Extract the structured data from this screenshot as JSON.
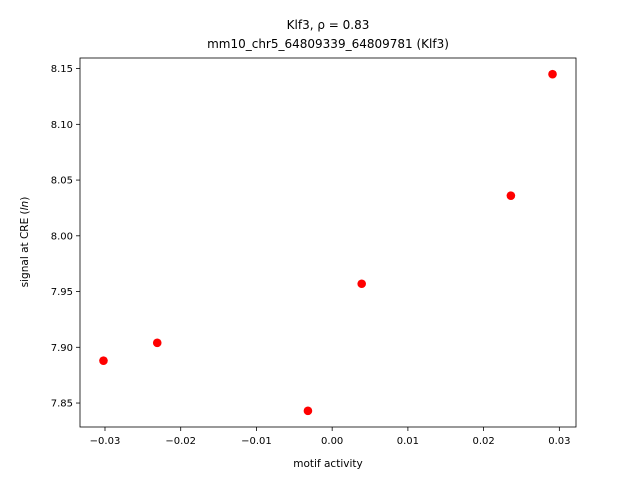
{
  "chart_data": {
    "type": "scatter",
    "title_line1": "Klf3, ρ = 0.83",
    "title_line2": "mm10_chr5_64809339_64809781 (Klf3)",
    "xlabel": "motif activity",
    "ylabel_prefix": "signal at CRE (",
    "ylabel_unit": "ln",
    "ylabel_suffix": ")",
    "xlim": [
      -0.0333,
      0.0322
    ],
    "ylim": [
      7.8285,
      8.1595
    ],
    "xticks": [
      -0.03,
      -0.02,
      -0.01,
      0.0,
      0.01,
      0.02,
      0.03
    ],
    "xtick_labels": [
      "−0.03",
      "−0.02",
      "−0.01",
      "0.00",
      "0.01",
      "0.02",
      "0.03"
    ],
    "yticks": [
      7.85,
      7.9,
      7.95,
      8.0,
      8.05,
      8.1,
      8.15
    ],
    "ytick_labels": [
      "7.85",
      "7.90",
      "7.95",
      "8.00",
      "8.05",
      "8.10",
      "8.15"
    ],
    "grid": false,
    "marker_color": "#ff0000",
    "points": [
      {
        "x": -0.0302,
        "y": 7.888
      },
      {
        "x": -0.0231,
        "y": 7.904
      },
      {
        "x": -0.0032,
        "y": 7.843
      },
      {
        "x": 0.0039,
        "y": 7.957
      },
      {
        "x": 0.0236,
        "y": 8.036
      },
      {
        "x": 0.0291,
        "y": 8.145
      }
    ]
  }
}
